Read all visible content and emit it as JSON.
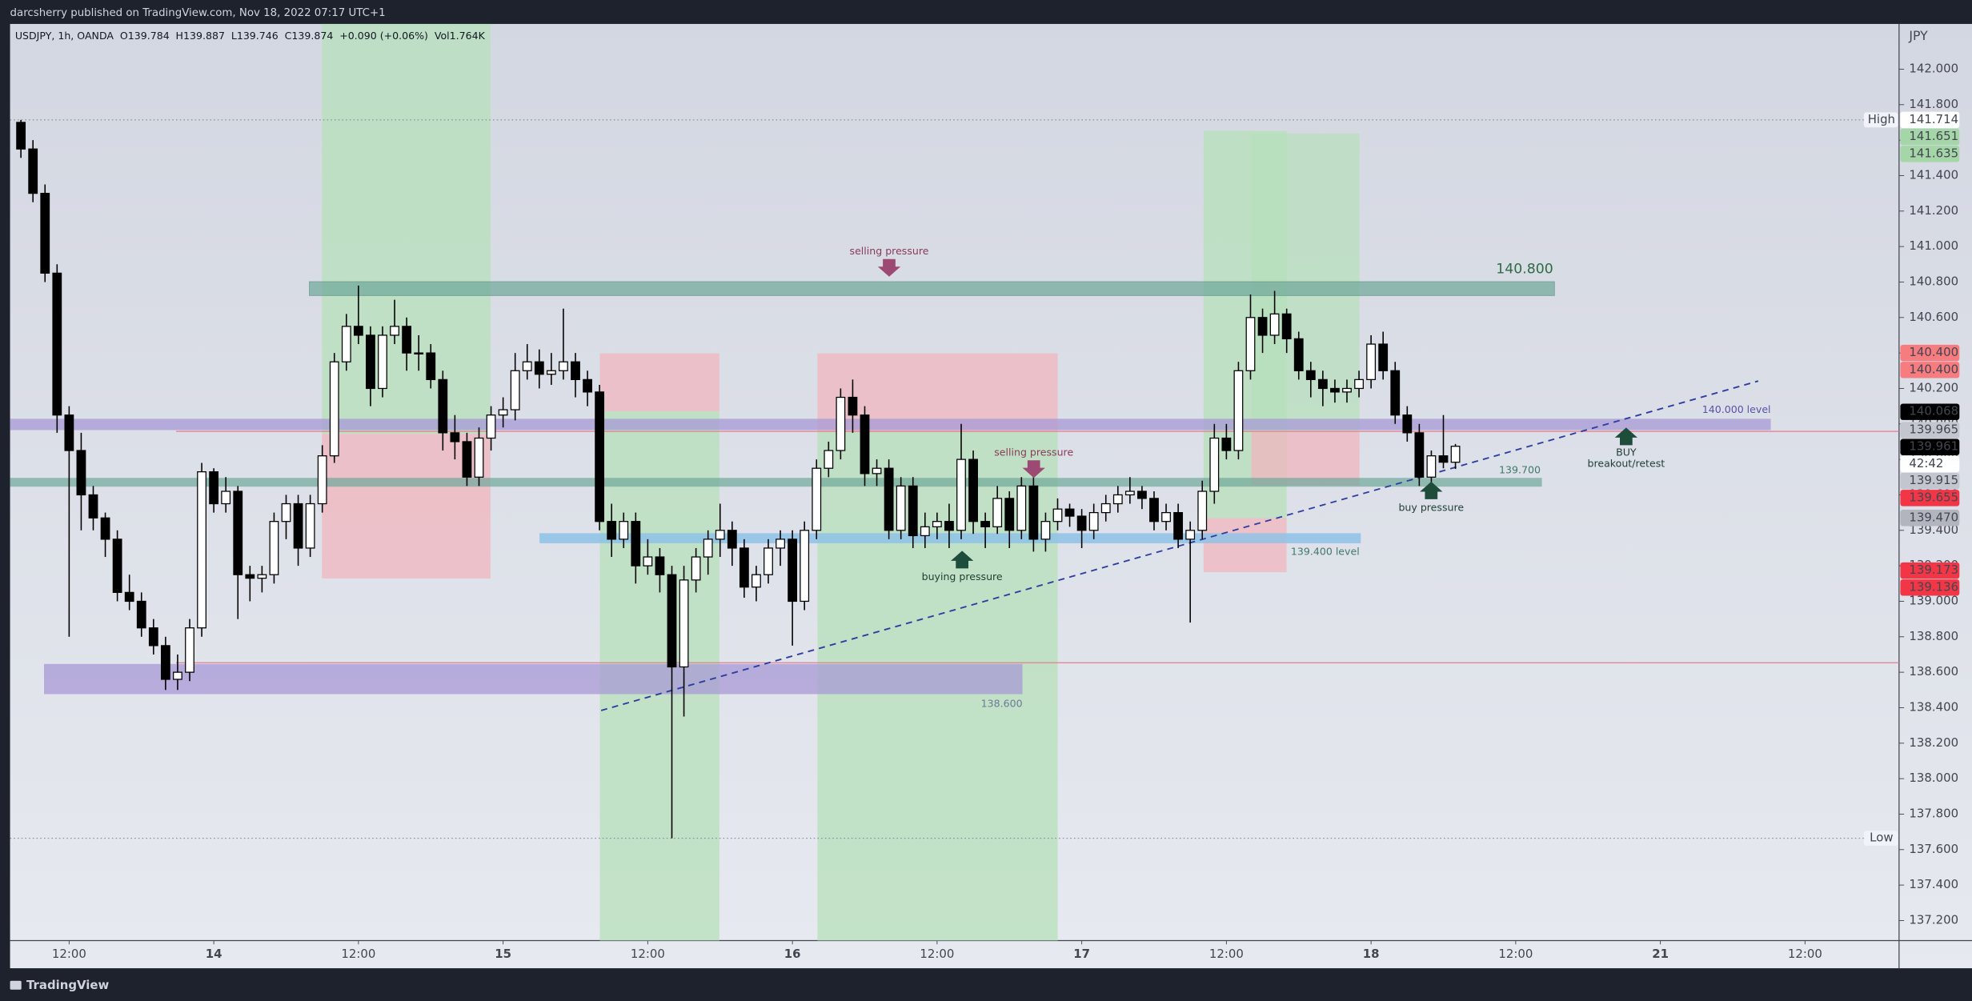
{
  "header": {
    "publisher": "darcsherry published on TradingView.com, Nov 18, 2022 07:17 UTC+1",
    "brand": "TradingView"
  },
  "chart_data": {
    "type": "candlestick",
    "legend": [
      "USDJPY, 1h, OANDA",
      "O139.784",
      "H139.887",
      "L139.746",
      "C139.874",
      "+0.090 (+0.06%)",
      "Vol1.764K"
    ],
    "currency": "JPY",
    "up_color": "#ffffff",
    "down_color": "#000000",
    "wick_color": "#000000",
    "x": [
      -4,
      -3,
      -2,
      -1,
      0,
      1,
      2,
      3,
      4,
      5,
      6,
      7,
      8,
      9,
      10,
      11,
      12,
      13,
      14,
      15,
      16,
      17,
      18,
      19,
      20,
      21,
      22,
      23,
      24,
      25,
      26,
      27,
      28,
      29,
      30,
      31,
      32,
      33,
      34,
      35,
      36,
      37,
      38,
      39,
      40,
      41,
      42,
      43,
      44,
      45,
      46,
      47,
      48,
      49,
      50,
      51,
      52,
      53,
      54,
      55,
      56,
      57,
      58,
      59,
      60,
      61,
      62,
      63,
      64,
      65,
      66,
      67,
      68,
      69,
      70,
      71,
      72,
      73,
      74,
      75,
      76,
      77,
      78,
      79,
      80,
      81,
      82,
      83,
      84,
      85,
      86,
      87,
      88,
      89,
      90,
      91,
      92,
      93,
      94,
      95,
      96,
      97,
      98,
      99,
      100,
      101,
      102,
      103,
      104,
      105,
      106,
      107,
      108,
      109,
      110,
      111,
      112,
      113,
      114,
      115
    ],
    "ohlc": [
      [
        141.7,
        141.714,
        141.5,
        141.55
      ],
      [
        141.55,
        141.6,
        141.25,
        141.3
      ],
      [
        141.3,
        141.35,
        140.8,
        140.85
      ],
      [
        140.85,
        140.9,
        139.95,
        140.05
      ],
      [
        140.05,
        140.1,
        138.8,
        139.85
      ],
      [
        139.85,
        139.95,
        139.4,
        139.6
      ],
      [
        139.6,
        139.65,
        139.4,
        139.47
      ],
      [
        139.47,
        139.5,
        139.25,
        139.35
      ],
      [
        139.35,
        139.4,
        139.0,
        139.05
      ],
      [
        139.05,
        139.15,
        138.95,
        139.0
      ],
      [
        139.0,
        139.05,
        138.8,
        138.85
      ],
      [
        138.85,
        138.9,
        138.7,
        138.75
      ],
      [
        138.75,
        138.8,
        138.5,
        138.56
      ],
      [
        138.56,
        138.7,
        138.5,
        138.6
      ],
      [
        138.6,
        138.9,
        138.55,
        138.85
      ],
      [
        138.85,
        139.78,
        138.8,
        139.73
      ],
      [
        139.73,
        139.75,
        139.5,
        139.55
      ],
      [
        139.55,
        139.7,
        139.5,
        139.62
      ],
      [
        139.62,
        139.65,
        138.9,
        139.15
      ],
      [
        139.15,
        139.2,
        139.0,
        139.13
      ],
      [
        139.13,
        139.2,
        139.05,
        139.15
      ],
      [
        139.15,
        139.5,
        139.1,
        139.45
      ],
      [
        139.45,
        139.6,
        139.35,
        139.55
      ],
      [
        139.55,
        139.6,
        139.2,
        139.3
      ],
      [
        139.3,
        139.6,
        139.25,
        139.55
      ],
      [
        139.55,
        139.88,
        139.5,
        139.82
      ],
      [
        139.82,
        140.4,
        139.78,
        140.35
      ],
      [
        140.35,
        140.62,
        140.3,
        140.55
      ],
      [
        140.55,
        140.78,
        140.45,
        140.5
      ],
      [
        140.5,
        140.55,
        140.1,
        140.2
      ],
      [
        140.2,
        140.55,
        140.15,
        140.5
      ],
      [
        140.5,
        140.7,
        140.45,
        140.55
      ],
      [
        140.55,
        140.6,
        140.3,
        140.4
      ],
      [
        140.4,
        140.5,
        140.3,
        140.4
      ],
      [
        140.4,
        140.45,
        140.2,
        140.25
      ],
      [
        140.25,
        140.3,
        139.85,
        139.95
      ],
      [
        139.95,
        140.05,
        139.8,
        139.9
      ],
      [
        139.9,
        139.95,
        139.65,
        139.7
      ],
      [
        139.7,
        139.98,
        139.65,
        139.92
      ],
      [
        139.92,
        140.1,
        139.85,
        140.05
      ],
      [
        140.05,
        140.15,
        139.98,
        140.08
      ],
      [
        140.08,
        140.4,
        140.02,
        140.3
      ],
      [
        140.3,
        140.45,
        140.25,
        140.35
      ],
      [
        140.35,
        140.42,
        140.2,
        140.28
      ],
      [
        140.28,
        140.4,
        140.22,
        140.3
      ],
      [
        140.3,
        140.65,
        140.25,
        140.35
      ],
      [
        140.35,
        140.4,
        140.15,
        140.25
      ],
      [
        140.25,
        140.3,
        140.1,
        140.18
      ],
      [
        140.18,
        140.22,
        139.4,
        139.45
      ],
      [
        139.45,
        139.55,
        139.25,
        139.35
      ],
      [
        139.35,
        139.5,
        139.3,
        139.45
      ],
      [
        139.45,
        139.5,
        139.1,
        139.2
      ],
      [
        139.2,
        139.35,
        139.15,
        139.25
      ],
      [
        139.25,
        139.3,
        139.05,
        139.15
      ],
      [
        139.15,
        139.2,
        137.664,
        138.63
      ],
      [
        138.63,
        139.2,
        138.35,
        139.12
      ],
      [
        139.12,
        139.3,
        139.05,
        139.25
      ],
      [
        139.25,
        139.4,
        139.15,
        139.35
      ],
      [
        139.35,
        139.55,
        139.25,
        139.4
      ],
      [
        139.4,
        139.45,
        139.2,
        139.3
      ],
      [
        139.3,
        139.35,
        139.02,
        139.08
      ],
      [
        139.08,
        139.2,
        139.0,
        139.15
      ],
      [
        139.15,
        139.35,
        139.1,
        139.3
      ],
      [
        139.3,
        139.4,
        139.2,
        139.35
      ],
      [
        139.35,
        139.4,
        138.75,
        139.0
      ],
      [
        139.0,
        139.45,
        138.95,
        139.4
      ],
      [
        139.4,
        139.8,
        139.35,
        139.75
      ],
      [
        139.75,
        139.9,
        139.7,
        139.85
      ],
      [
        139.85,
        140.2,
        139.8,
        140.15
      ],
      [
        140.15,
        140.25,
        139.95,
        140.05
      ],
      [
        140.05,
        140.1,
        139.65,
        139.72
      ],
      [
        139.72,
        139.8,
        139.65,
        139.75
      ],
      [
        139.75,
        139.8,
        139.35,
        139.4
      ],
      [
        139.4,
        139.7,
        139.35,
        139.65
      ],
      [
        139.65,
        139.7,
        139.3,
        139.37
      ],
      [
        139.37,
        139.5,
        139.3,
        139.42
      ],
      [
        139.42,
        139.5,
        139.35,
        139.45
      ],
      [
        139.45,
        139.55,
        139.3,
        139.4
      ],
      [
        139.4,
        140.0,
        139.35,
        139.8
      ],
      [
        139.8,
        139.85,
        139.38,
        139.45
      ],
      [
        139.45,
        139.5,
        139.3,
        139.42
      ],
      [
        139.42,
        139.65,
        139.38,
        139.58
      ],
      [
        139.58,
        139.62,
        139.3,
        139.4
      ],
      [
        139.4,
        139.7,
        139.35,
        139.65
      ],
      [
        139.65,
        139.7,
        139.28,
        139.35
      ],
      [
        139.35,
        139.5,
        139.28,
        139.45
      ],
      [
        139.45,
        139.58,
        139.4,
        139.52
      ],
      [
        139.52,
        139.55,
        139.42,
        139.48
      ],
      [
        139.48,
        139.52,
        139.3,
        139.4
      ],
      [
        139.4,
        139.55,
        139.35,
        139.5
      ],
      [
        139.5,
        139.6,
        139.45,
        139.55
      ],
      [
        139.55,
        139.65,
        139.5,
        139.6
      ],
      [
        139.6,
        139.7,
        139.55,
        139.62
      ],
      [
        139.62,
        139.65,
        139.52,
        139.58
      ],
      [
        139.58,
        139.62,
        139.4,
        139.45
      ],
      [
        139.45,
        139.55,
        139.4,
        139.5
      ],
      [
        139.5,
        139.55,
        139.3,
        139.35
      ],
      [
        139.35,
        139.45,
        138.88,
        139.4
      ],
      [
        139.4,
        139.68,
        139.35,
        139.62
      ],
      [
        139.62,
        140.0,
        139.55,
        139.92
      ],
      [
        139.92,
        140.0,
        139.8,
        139.85
      ],
      [
        139.85,
        140.35,
        139.8,
        140.3
      ],
      [
        140.3,
        140.73,
        140.25,
        140.6
      ],
      [
        140.6,
        140.65,
        140.4,
        140.5
      ],
      [
        140.5,
        140.75,
        140.45,
        140.62
      ],
      [
        140.62,
        140.65,
        140.4,
        140.48
      ],
      [
        140.48,
        140.52,
        140.25,
        140.3
      ],
      [
        140.3,
        140.35,
        140.15,
        140.25
      ],
      [
        140.25,
        140.3,
        140.1,
        140.2
      ],
      [
        140.2,
        140.25,
        140.12,
        140.18
      ],
      [
        140.18,
        140.25,
        140.12,
        140.2
      ],
      [
        140.2,
        140.3,
        140.15,
        140.25
      ],
      [
        140.25,
        140.5,
        140.2,
        140.45
      ],
      [
        140.45,
        140.52,
        140.25,
        140.3
      ],
      [
        140.3,
        140.35,
        140.0,
        140.05
      ],
      [
        140.05,
        140.1,
        139.9,
        139.95
      ],
      [
        139.95,
        140.0,
        139.65,
        139.7
      ],
      [
        139.7,
        139.85,
        139.65,
        139.82
      ],
      [
        139.82,
        140.05,
        139.75,
        139.784
      ],
      [
        139.784,
        139.887,
        139.746,
        139.874
      ]
    ],
    "xlim": [
      -4.9,
      151.8
    ],
    "xticks": [
      {
        "value": 0,
        "label": "12:00"
      },
      {
        "value": 12,
        "label": "14"
      },
      {
        "value": 24,
        "label": "12:00"
      },
      {
        "value": 36,
        "label": "15"
      },
      {
        "value": 48,
        "label": "12:00"
      },
      {
        "value": 60,
        "label": "16"
      },
      {
        "value": 72,
        "label": "12:00"
      },
      {
        "value": 84,
        "label": "17"
      },
      {
        "value": 96,
        "label": "12:00"
      },
      {
        "value": 108,
        "label": "18"
      },
      {
        "value": 120,
        "label": "12:00"
      },
      {
        "value": 132,
        "label": "21"
      },
      {
        "value": 144,
        "label": "12:00"
      }
    ],
    "ylim": [
      137.087,
      142.255
    ],
    "yticks": [
      {
        "value": 137.2,
        "label": "137.200"
      },
      {
        "value": 137.4,
        "label": "137.400"
      },
      {
        "value": 137.6,
        "label": "137.600"
      },
      {
        "value": 137.8,
        "label": "137.800"
      },
      {
        "value": 138.0,
        "label": "138.000"
      },
      {
        "value": 138.2,
        "label": "138.200"
      },
      {
        "value": 138.4,
        "label": "138.400"
      },
      {
        "value": 138.6,
        "label": "138.600"
      },
      {
        "value": 138.8,
        "label": "138.800"
      },
      {
        "value": 139.0,
        "label": "139.000"
      },
      {
        "value": 139.2,
        "label": "139.200"
      },
      {
        "value": 139.4,
        "label": "139.400"
      },
      {
        "value": 139.6,
        "label": "139.600"
      },
      {
        "value": 139.8,
        "label": "139.800"
      },
      {
        "value": 140.0,
        "label": "140.000"
      },
      {
        "value": 140.2,
        "label": "140.200"
      },
      {
        "value": 140.4,
        "label": "140.400"
      },
      {
        "value": 140.6,
        "label": "140.600"
      },
      {
        "value": 140.8,
        "label": "140.800"
      },
      {
        "value": 141.0,
        "label": "141.000"
      },
      {
        "value": 141.2,
        "label": "141.200"
      },
      {
        "value": 141.4,
        "label": "141.400"
      },
      {
        "value": 141.6,
        "label": "141.600"
      },
      {
        "value": 141.8,
        "label": "141.800"
      },
      {
        "value": 142.0,
        "label": "142.000"
      }
    ],
    "extremes": [
      {
        "name": "High",
        "value": 141.714
      },
      {
        "name": "Low",
        "value": 137.664
      }
    ],
    "price_badges": [
      {
        "value": 141.714,
        "label": "141.714",
        "color": "#ffffff",
        "text_color": "#131722"
      },
      {
        "value": 141.651,
        "label": "141.651",
        "color": "#a5d6a7",
        "text_color": "#131722"
      },
      {
        "value": 141.635,
        "label": "141.635",
        "color": "#a5d6a7",
        "text_color": "#131722"
      },
      {
        "value": 140.4,
        "label": "140.400",
        "color": "#f77c80",
        "text_color": "#ffffff"
      },
      {
        "value": 140.4,
        "label": "140.400",
        "color": "#f77c80",
        "text_color": "#ffffff"
      },
      {
        "value": 140.068,
        "label": "140.068",
        "color": "#000000",
        "text_color": "#ffffff"
      },
      {
        "value": 139.965,
        "label": "139.965",
        "color": "#c3c6ce",
        "text_color": "#131722"
      },
      {
        "value": 139.961,
        "label": "139.961",
        "color": "#000000",
        "text_color": "#ffffff"
      },
      {
        "value": 139.915,
        "label": "139.915",
        "color": "#c3c6ce",
        "text_color": "#131722"
      },
      {
        "value": 139.655,
        "label": "139.655",
        "color": "#f23645",
        "text_color": "#ffffff"
      },
      {
        "value": 139.47,
        "label": "139.470",
        "color": "#b2b5be",
        "text_color": "#131722"
      },
      {
        "value": 139.173,
        "label": "139.173",
        "color": "#f23645",
        "text_color": "#ffffff"
      },
      {
        "value": 139.136,
        "label": "139.136",
        "color": "#f23645",
        "text_color": "#ffffff"
      }
    ],
    "countdown": "42:42",
    "annotations": [
      "selling pressure",
      "140.800",
      "140.000 level",
      "139.700",
      "139.400 level",
      "138.600",
      "selling pressure",
      "buying pressure",
      "buy pressure",
      "BUY",
      "breakout/retest"
    ]
  }
}
